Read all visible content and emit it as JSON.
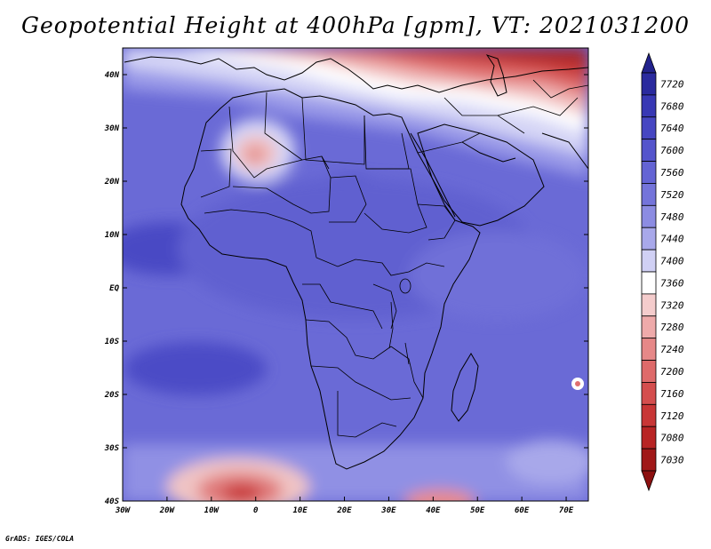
{
  "title": "Geopotential Height at 400hPa [gpm], VT: 2021031200",
  "footer": "GrADS: IGES/COLA",
  "map": {
    "variable": "Geopotential Height",
    "level_hpa": 400,
    "units": "gpm",
    "valid_time": "2021031200",
    "lon_range": [
      -30,
      75
    ],
    "lat_range": [
      -40,
      45
    ],
    "lon_ticks": [
      {
        "value": -30,
        "label": "30W"
      },
      {
        "value": -20,
        "label": "20W"
      },
      {
        "value": -10,
        "label": "10W"
      },
      {
        "value": 0,
        "label": "0"
      },
      {
        "value": 10,
        "label": "10E"
      },
      {
        "value": 20,
        "label": "20E"
      },
      {
        "value": 30,
        "label": "30E"
      },
      {
        "value": 40,
        "label": "40E"
      },
      {
        "value": 50,
        "label": "50E"
      },
      {
        "value": 60,
        "label": "60E"
      },
      {
        "value": 70,
        "label": "70E"
      }
    ],
    "lat_ticks": [
      {
        "value": 40,
        "label": "40N"
      },
      {
        "value": 30,
        "label": "30N"
      },
      {
        "value": 20,
        "label": "20N"
      },
      {
        "value": 10,
        "label": "10N"
      },
      {
        "value": 0,
        "label": "EQ"
      },
      {
        "value": -10,
        "label": "10S"
      },
      {
        "value": -20,
        "label": "20S"
      },
      {
        "value": -30,
        "label": "30S"
      },
      {
        "value": -40,
        "label": "40S"
      }
    ]
  },
  "colorbar": {
    "levels": [
      {
        "label": "7720",
        "color": "#2a2a9e"
      },
      {
        "label": "7680",
        "color": "#3838b4"
      },
      {
        "label": "7640",
        "color": "#4646c2"
      },
      {
        "label": "7600",
        "color": "#5555cc"
      },
      {
        "label": "7560",
        "color": "#6464d4"
      },
      {
        "label": "7520",
        "color": "#7474da"
      },
      {
        "label": "7480",
        "color": "#8c8ce2"
      },
      {
        "label": "7440",
        "color": "#a8a8ea"
      },
      {
        "label": "7400",
        "color": "#d0d0f4"
      },
      {
        "label": "7360",
        "color": "#ffffff"
      },
      {
        "label": "7320",
        "color": "#f4cccc"
      },
      {
        "label": "7280",
        "color": "#eeaaaa"
      },
      {
        "label": "7240",
        "color": "#e68888"
      },
      {
        "label": "7200",
        "color": "#de6a6a"
      },
      {
        "label": "7160",
        "color": "#d44e4e"
      },
      {
        "label": "7120",
        "color": "#c83636"
      },
      {
        "label": "7080",
        "color": "#b82424"
      },
      {
        "label": "7030",
        "color": "#a01818"
      }
    ],
    "top_arrow_color": "#22228c",
    "bottom_arrow_color": "#8c1010"
  }
}
